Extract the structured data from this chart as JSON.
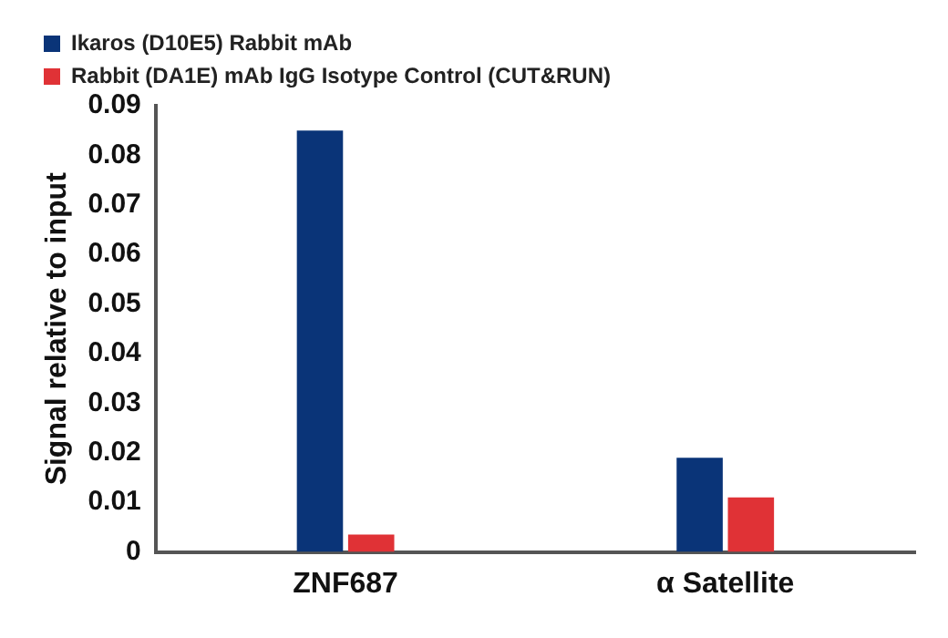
{
  "chart_data": {
    "type": "bar",
    "ylabel": "Signal relative to input",
    "categories": [
      "ZNF687",
      "α Satellite"
    ],
    "series": [
      {
        "name": "Ikaros (D10E5) Rabbit mAb",
        "color": "#0a3478",
        "values": [
          0.085,
          0.019
        ]
      },
      {
        "name": "Rabbit (DA1E) mAb IgG Isotype Control (CUT&RUN)",
        "color": "#e03236",
        "values": [
          0.0035,
          0.011
        ]
      }
    ],
    "ylim": [
      0,
      0.09
    ],
    "yticks": [
      0,
      0.01,
      0.02,
      0.03,
      0.04,
      0.05,
      0.06,
      0.07,
      0.08,
      0.09
    ],
    "grid": false,
    "legend": "top left"
  }
}
